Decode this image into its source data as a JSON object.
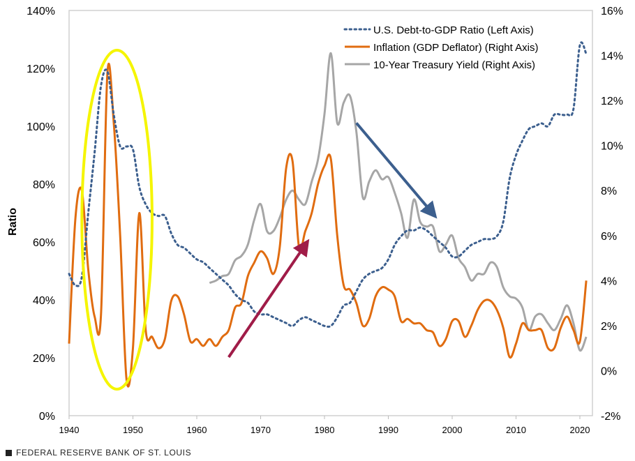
{
  "chart_data": {
    "type": "line",
    "ylabel": "Ratio",
    "x_range": [
      1940,
      2023
    ],
    "x_ticks": [
      1940,
      1950,
      1960,
      1970,
      1980,
      1990,
      2000,
      2010,
      2020
    ],
    "y_left": {
      "range": [
        0,
        140
      ],
      "ticks": [
        0,
        20,
        40,
        60,
        80,
        100,
        120,
        140
      ],
      "format": "%"
    },
    "y_right": {
      "range": [
        -2,
        16
      ],
      "ticks": [
        -2,
        0,
        2,
        4,
        6,
        8,
        10,
        12,
        14,
        16
      ],
      "format": "%"
    },
    "grid": false,
    "legend_placement": "top-right",
    "series": [
      {
        "name": "U.S. Debt-to-GDP Ratio (Left Axis)",
        "axis": "left",
        "style": "dotted",
        "color": "#3c5f8e",
        "x": [
          1940,
          1941,
          1942,
          1943,
          1944,
          1945,
          1946,
          1947,
          1948,
          1949,
          1950,
          1951,
          1952,
          1953,
          1954,
          1955,
          1956,
          1957,
          1958,
          1959,
          1960,
          1961,
          1962,
          1963,
          1964,
          1965,
          1966,
          1967,
          1968,
          1969,
          1970,
          1971,
          1972,
          1973,
          1974,
          1975,
          1976,
          1977,
          1978,
          1979,
          1980,
          1981,
          1982,
          1983,
          1984,
          1985,
          1986,
          1987,
          1988,
          1989,
          1990,
          1991,
          1992,
          1993,
          1994,
          1995,
          1996,
          1997,
          1998,
          1999,
          2000,
          2001,
          2002,
          2003,
          2004,
          2005,
          2006,
          2007,
          2008,
          2009,
          2010,
          2011,
          2012,
          2013,
          2014,
          2015,
          2016,
          2017,
          2018,
          2019,
          2020,
          2021
        ],
        "values": [
          49,
          45,
          48,
          70,
          91,
          114,
          119,
          104,
          93,
          93,
          92,
          79,
          73,
          70,
          69,
          69,
          63,
          59,
          58,
          56,
          54,
          53,
          51,
          49,
          47,
          45,
          42,
          40,
          39,
          36,
          35,
          35,
          34,
          33,
          32,
          31,
          33,
          34,
          33,
          32,
          31,
          31,
          34,
          38,
          39,
          43,
          47,
          49,
          50,
          51,
          54,
          59,
          62,
          64,
          64,
          65,
          64,
          62,
          60,
          58,
          55,
          55,
          57,
          59,
          60,
          61,
          61,
          62,
          67,
          82,
          90,
          95,
          99,
          100,
          101,
          100,
          104,
          104,
          104,
          106,
          128,
          125
        ]
      },
      {
        "name": "Inflation (GDP Deflator) (Right Axis)",
        "axis": "right",
        "style": "solid",
        "color": "#e06c10",
        "x": [
          1940,
          1941,
          1942,
          1943,
          1944,
          1945,
          1946,
          1947,
          1948,
          1949,
          1950,
          1951,
          1952,
          1953,
          1954,
          1955,
          1956,
          1957,
          1958,
          1959,
          1960,
          1961,
          1962,
          1963,
          1964,
          1965,
          1966,
          1967,
          1968,
          1969,
          1970,
          1971,
          1972,
          1973,
          1974,
          1975,
          1976,
          1977,
          1978,
          1979,
          1980,
          1981,
          1982,
          1983,
          1984,
          1985,
          1986,
          1987,
          1988,
          1989,
          1990,
          1991,
          1992,
          1993,
          1994,
          1995,
          1996,
          1997,
          1998,
          1999,
          2000,
          2001,
          2002,
          2003,
          2004,
          2005,
          2006,
          2007,
          2008,
          2009,
          2010,
          2011,
          2012,
          2013,
          2014,
          2015,
          2016,
          2017,
          2018,
          2019,
          2020,
          2021
        ],
        "values": [
          1.2,
          6.8,
          8.0,
          4.5,
          2.4,
          2.5,
          13.2,
          11.0,
          6.0,
          -0.4,
          1.0,
          7.0,
          1.8,
          1.5,
          1.0,
          1.4,
          3.1,
          3.3,
          2.5,
          1.3,
          1.4,
          1.1,
          1.4,
          1.1,
          1.5,
          1.8,
          2.8,
          3.0,
          4.2,
          4.8,
          5.3,
          5.0,
          4.3,
          5.5,
          9.0,
          9.3,
          5.5,
          6.2,
          7.0,
          8.3,
          9.1,
          9.4,
          6.0,
          3.8,
          3.6,
          3.0,
          2.0,
          2.3,
          3.3,
          3.7,
          3.6,
          3.3,
          2.2,
          2.3,
          2.1,
          2.1,
          1.8,
          1.7,
          1.1,
          1.4,
          2.2,
          2.2,
          1.5,
          2.0,
          2.7,
          3.1,
          3.1,
          2.7,
          1.9,
          0.6,
          1.2,
          2.1,
          1.8,
          1.8,
          1.8,
          1.0,
          1.0,
          1.9,
          2.4,
          1.8,
          1.3,
          4.0
        ]
      },
      {
        "name": "10-Year Treasury Yield (Right Axis)",
        "axis": "right",
        "style": "solid",
        "color": "#a6a6a6",
        "x": [
          1962,
          1963,
          1964,
          1965,
          1966,
          1967,
          1968,
          1969,
          1970,
          1971,
          1972,
          1973,
          1974,
          1975,
          1976,
          1977,
          1978,
          1979,
          1980,
          1981,
          1982,
          1983,
          1984,
          1985,
          1986,
          1987,
          1988,
          1989,
          1990,
          1991,
          1992,
          1993,
          1994,
          1995,
          1996,
          1997,
          1998,
          1999,
          2000,
          2001,
          2002,
          2003,
          2004,
          2005,
          2006,
          2007,
          2008,
          2009,
          2010,
          2011,
          2012,
          2013,
          2014,
          2015,
          2016,
          2017,
          2018,
          2019,
          2020,
          2021
        ],
        "values": [
          3.9,
          4.0,
          4.2,
          4.3,
          4.9,
          5.1,
          5.6,
          6.7,
          7.4,
          6.2,
          6.2,
          6.8,
          7.6,
          8.0,
          7.6,
          7.4,
          8.4,
          9.4,
          11.4,
          14.1,
          11.0,
          11.9,
          12.2,
          10.6,
          7.7,
          8.4,
          8.9,
          8.5,
          8.6,
          7.9,
          7.0,
          5.9,
          7.6,
          6.6,
          6.4,
          6.4,
          5.3,
          5.6,
          6.0,
          5.0,
          4.6,
          4.0,
          4.3,
          4.3,
          4.8,
          4.6,
          3.7,
          3.3,
          3.2,
          2.8,
          1.8,
          2.4,
          2.5,
          2.1,
          1.8,
          2.3,
          2.9,
          2.1,
          0.9,
          1.5
        ]
      }
    ],
    "annotations": [
      {
        "type": "ellipse",
        "color": "#f5f500",
        "around_years": [
          1942,
          1953
        ]
      },
      {
        "type": "arrow",
        "color": "#a01c48",
        "from": [
          1965,
          0.6
        ],
        "to": [
          1977.5,
          5.8
        ],
        "axis": "right"
      },
      {
        "type": "arrow",
        "color": "#3c5f8e",
        "from": [
          1985,
          11.0
        ],
        "to": [
          1997.5,
          6.8
        ],
        "axis": "right"
      }
    ]
  },
  "footer": {
    "source": "FEDERAL RESERVE BANK OF ST. LOUIS"
  }
}
